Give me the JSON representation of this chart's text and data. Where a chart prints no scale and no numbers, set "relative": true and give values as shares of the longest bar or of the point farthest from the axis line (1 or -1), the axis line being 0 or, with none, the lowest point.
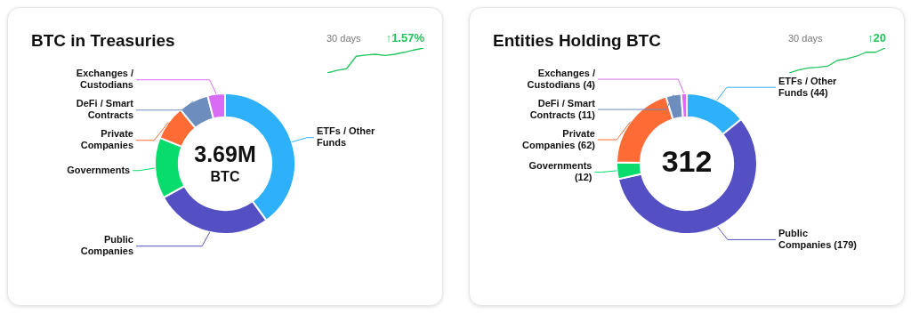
{
  "chart_data": [
    {
      "type": "donut",
      "title": "BTC in Treasuries",
      "categories": [
        "ETFs / Other Funds",
        "Public Companies",
        "Governments",
        "Private Companies",
        "DeFi / Smart Contracts",
        "Exchanges / Custodians"
      ],
      "values": [
        40,
        27,
        14,
        8,
        7,
        4
      ],
      "colors": [
        "#2eb0fb",
        "#5450c4",
        "#08dc6c",
        "#fe6b35",
        "#6c8dbd",
        "#d86cf5"
      ],
      "annotations": [
        "3.69M",
        "BTC"
      ]
    },
    {
      "type": "line",
      "title": "30 days",
      "annotations": [
        "↑1.57%"
      ],
      "relative": true,
      "marker": "none",
      "categories": [
        null,
        null,
        null,
        null,
        null,
        null,
        null,
        null,
        null,
        null,
        null
      ],
      "color": "#22c55e",
      "values": [
        0,
        0.1,
        0.17,
        0.67,
        0.72,
        0.75,
        0.7,
        0.75,
        0.83,
        0.92,
        1
      ]
    },
    {
      "type": "donut",
      "title": "Entities Holding BTC",
      "categories": [
        "ETFs / Other Funds (44)",
        "Public Companies (179)",
        "Governments (12)",
        "Private Companies (62)",
        "DeFi / Smart Contracts (11)",
        "Exchanges / Custodians (4)"
      ],
      "values": [
        44,
        179,
        12,
        62,
        11,
        4
      ],
      "colors": [
        "#2eb0fb",
        "#5450c4",
        "#08dc6c",
        "#fe6b35",
        "#6c8dbd",
        "#d86cf5"
      ],
      "annotations": [
        "312"
      ]
    },
    {
      "type": "line",
      "title": "30 days",
      "annotations": [
        "↑20"
      ],
      "relative": true,
      "marker": "none",
      "categories": [
        null,
        null,
        null,
        null,
        null,
        null,
        null,
        null,
        null,
        null,
        null
      ],
      "color": "#22c55e",
      "values": [
        0,
        0.12,
        0.2,
        0.23,
        0.27,
        0.5,
        0.57,
        0.67,
        0.83,
        0.83,
        1
      ]
    }
  ]
}
